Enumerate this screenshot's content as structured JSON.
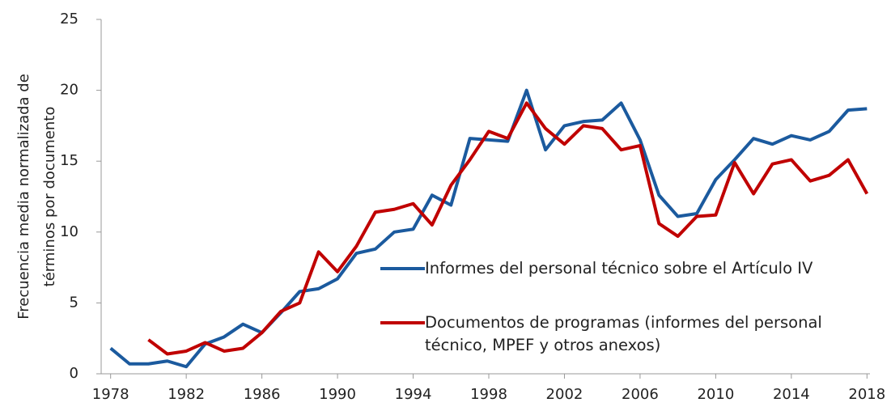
{
  "chart_data": {
    "type": "line",
    "ylabel": [
      "Frecuencia media normalizada de",
      "términos por documento"
    ],
    "x": [
      1978,
      1979,
      1980,
      1981,
      1982,
      1983,
      1984,
      1985,
      1986,
      1987,
      1988,
      1989,
      1990,
      1991,
      1992,
      1993,
      1994,
      1995,
      1996,
      1997,
      1998,
      1999,
      2000,
      2001,
      2002,
      2003,
      2004,
      2005,
      2006,
      2007,
      2008,
      2009,
      2010,
      2011,
      2012,
      2013,
      2014,
      2015,
      2016,
      2017,
      2018
    ],
    "series": [
      {
        "name": "Informes del personal técnico sobre el Artículo IV",
        "color": "#1b5a9e",
        "values": [
          1.8,
          0.7,
          0.7,
          0.9,
          0.5,
          2.1,
          2.6,
          3.5,
          2.9,
          4.3,
          5.8,
          6.0,
          6.7,
          8.5,
          8.8,
          10.0,
          10.2,
          12.6,
          11.9,
          16.6,
          16.5,
          16.4,
          20.0,
          15.8,
          17.5,
          17.8,
          17.9,
          19.1,
          16.5,
          12.6,
          11.1,
          11.3,
          13.7,
          15.1,
          16.6,
          16.2,
          16.8,
          16.5,
          17.1,
          18.6,
          18.7
        ]
      },
      {
        "name": "Documentos de programas (informes del personal técnico, MPEF y otros anexos)",
        "color": "#c00000",
        "values": [
          null,
          null,
          2.4,
          1.4,
          1.6,
          2.2,
          1.6,
          1.8,
          2.9,
          4.4,
          5.0,
          8.6,
          7.2,
          9.0,
          11.4,
          11.6,
          12.0,
          10.5,
          13.3,
          15.1,
          17.1,
          16.6,
          19.1,
          17.3,
          16.2,
          17.5,
          17.3,
          15.8,
          16.1,
          10.6,
          9.7,
          11.1,
          11.2,
          14.9,
          12.7,
          14.8,
          15.1,
          13.6,
          14.0,
          15.1,
          12.7
        ]
      }
    ],
    "xlim": [
      1977.5,
      2018.5
    ],
    "xticks": [
      1978,
      1982,
      1986,
      1990,
      1994,
      1998,
      2002,
      2006,
      2010,
      2014,
      2018
    ],
    "ylim": [
      0,
      25
    ],
    "yticks": [
      0,
      5,
      10,
      15,
      20,
      25
    ],
    "grid": false
  }
}
